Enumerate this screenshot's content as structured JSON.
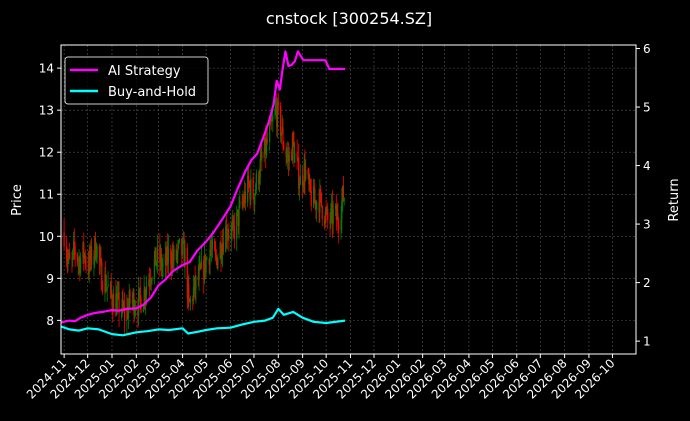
{
  "chart_data": {
    "type": "line",
    "title": "cnstock [300254.SZ]",
    "ylabel_left": "Price",
    "ylabel_right": "Return",
    "xlabel": "",
    "grid": true,
    "legend_position": "top-left",
    "x_axis": {
      "type": "date",
      "range": [
        "2024-10-28",
        "2026-10-31"
      ],
      "tick_labels": [
        "2024-11",
        "2024-12",
        "2025-01",
        "2025-02",
        "2025-03",
        "2025-04",
        "2025-05",
        "2025-06",
        "2025-07",
        "2025-08",
        "2025-09",
        "2025-10",
        "2025-11",
        "2025-12",
        "2026-01",
        "2026-02",
        "2026-03",
        "2026-04",
        "2026-05",
        "2026-06",
        "2026-07",
        "2026-08",
        "2026-09",
        "2026-10"
      ]
    },
    "y_left": {
      "range": [
        7.2,
        14.55
      ],
      "ticks": [
        8,
        9,
        10,
        11,
        12,
        13,
        14
      ]
    },
    "y_right": {
      "range": [
        0.78,
        6.06
      ],
      "ticks": [
        1,
        2,
        3,
        4,
        5,
        6
      ]
    },
    "candles": {
      "up_color": "#008000",
      "down_color": "#ff0000",
      "close_path": [
        [
          "2024-11-01",
          10.1
        ],
        [
          "2024-11-05",
          9.5
        ],
        [
          "2024-11-10",
          9.2
        ],
        [
          "2024-11-14",
          9.7
        ],
        [
          "2024-11-20",
          9.4
        ],
        [
          "2024-11-26",
          9.6
        ],
        [
          "2024-12-02",
          9.3
        ],
        [
          "2024-12-06",
          9.5
        ],
        [
          "2024-12-12",
          9.8
        ],
        [
          "2024-12-18",
          9.1
        ],
        [
          "2024-12-24",
          8.9
        ],
        [
          "2024-12-30",
          8.6
        ],
        [
          "2025-01-06",
          8.4
        ],
        [
          "2025-01-12",
          8.3
        ],
        [
          "2025-01-18",
          8.1
        ],
        [
          "2025-01-25",
          8.5
        ],
        [
          "2025-02-03",
          8.4
        ],
        [
          "2025-02-10",
          8.6
        ],
        [
          "2025-02-16",
          9.0
        ],
        [
          "2025-02-22",
          9.3
        ],
        [
          "2025-03-01",
          9.5
        ],
        [
          "2025-03-08",
          9.2
        ],
        [
          "2025-03-15",
          9.6
        ],
        [
          "2025-03-22",
          9.4
        ],
        [
          "2025-03-29",
          9.7
        ],
        [
          "2025-04-04",
          9.5
        ],
        [
          "2025-04-09",
          8.3
        ],
        [
          "2025-04-15",
          8.7
        ],
        [
          "2025-04-22",
          9.0
        ],
        [
          "2025-04-29",
          9.3
        ],
        [
          "2025-05-06",
          9.7
        ],
        [
          "2025-05-13",
          9.4
        ],
        [
          "2025-05-20",
          9.8
        ],
        [
          "2025-05-27",
          10.2
        ],
        [
          "2025-06-03",
          10.0
        ],
        [
          "2025-06-10",
          10.4
        ],
        [
          "2025-06-17",
          10.8
        ],
        [
          "2025-06-24",
          11.2
        ],
        [
          "2025-07-01",
          11.0
        ],
        [
          "2025-07-08",
          11.6
        ],
        [
          "2025-07-15",
          12.0
        ],
        [
          "2025-07-22",
          12.5
        ],
        [
          "2025-07-29",
          13.0
        ],
        [
          "2025-08-04",
          12.6
        ],
        [
          "2025-08-09",
          12.1
        ],
        [
          "2025-08-14",
          11.8
        ],
        [
          "2025-08-19",
          12.2
        ],
        [
          "2025-08-24",
          11.7
        ],
        [
          "2025-08-29",
          11.3
        ],
        [
          "2025-09-04",
          11.6
        ],
        [
          "2025-09-10",
          11.0
        ],
        [
          "2025-09-16",
          10.8
        ],
        [
          "2025-09-22",
          10.9
        ],
        [
          "2025-09-28",
          10.6
        ],
        [
          "2025-10-04",
          10.3
        ],
        [
          "2025-10-10",
          10.5
        ],
        [
          "2025-10-16",
          10.4
        ],
        [
          "2025-10-22",
          10.9
        ],
        [
          "2025-10-25",
          11.0
        ]
      ]
    },
    "series": [
      {
        "name": "AI Strategy",
        "axis": "right",
        "color": "#ff00ff",
        "points": [
          [
            "2024-10-28",
            1.32
          ],
          [
            "2024-11-08",
            1.35
          ],
          [
            "2024-11-15",
            1.34
          ],
          [
            "2024-11-22",
            1.4
          ],
          [
            "2024-12-01",
            1.45
          ],
          [
            "2024-12-10",
            1.48
          ],
          [
            "2024-12-20",
            1.5
          ],
          [
            "2025-01-01",
            1.53
          ],
          [
            "2025-01-10",
            1.52
          ],
          [
            "2025-01-20",
            1.55
          ],
          [
            "2025-02-01",
            1.56
          ],
          [
            "2025-02-10",
            1.62
          ],
          [
            "2025-02-20",
            1.75
          ],
          [
            "2025-03-01",
            1.95
          ],
          [
            "2025-03-10",
            2.05
          ],
          [
            "2025-03-20",
            2.2
          ],
          [
            "2025-04-01",
            2.3
          ],
          [
            "2025-04-10",
            2.35
          ],
          [
            "2025-04-20",
            2.55
          ],
          [
            "2025-05-01",
            2.7
          ],
          [
            "2025-05-10",
            2.85
          ],
          [
            "2025-05-20",
            3.05
          ],
          [
            "2025-06-01",
            3.3
          ],
          [
            "2025-06-10",
            3.6
          ],
          [
            "2025-06-20",
            3.9
          ],
          [
            "2025-06-28",
            4.1
          ],
          [
            "2025-07-05",
            4.2
          ],
          [
            "2025-07-12",
            4.45
          ],
          [
            "2025-07-20",
            4.75
          ],
          [
            "2025-07-26",
            5.05
          ],
          [
            "2025-07-30",
            5.45
          ],
          [
            "2025-08-03",
            5.3
          ],
          [
            "2025-08-06",
            5.6
          ],
          [
            "2025-08-10",
            5.95
          ],
          [
            "2025-08-14",
            5.7
          ],
          [
            "2025-08-18",
            5.72
          ],
          [
            "2025-08-22",
            5.78
          ],
          [
            "2025-08-26",
            5.95
          ],
          [
            "2025-09-02",
            5.8
          ],
          [
            "2025-09-15",
            5.8
          ],
          [
            "2025-09-30",
            5.8
          ],
          [
            "2025-10-05",
            5.65
          ],
          [
            "2025-10-25",
            5.65
          ]
        ]
      },
      {
        "name": "Buy-and-Hold",
        "axis": "right",
        "color": "#00ffff",
        "points": [
          [
            "2024-10-28",
            1.25
          ],
          [
            "2024-11-08",
            1.2
          ],
          [
            "2024-11-20",
            1.18
          ],
          [
            "2024-12-01",
            1.22
          ],
          [
            "2024-12-15",
            1.2
          ],
          [
            "2025-01-01",
            1.12
          ],
          [
            "2025-01-15",
            1.1
          ],
          [
            "2025-02-01",
            1.15
          ],
          [
            "2025-02-15",
            1.17
          ],
          [
            "2025-03-01",
            1.2
          ],
          [
            "2025-03-15",
            1.19
          ],
          [
            "2025-04-01",
            1.22
          ],
          [
            "2025-04-08",
            1.13
          ],
          [
            "2025-04-20",
            1.16
          ],
          [
            "2025-05-01",
            1.19
          ],
          [
            "2025-05-15",
            1.22
          ],
          [
            "2025-06-01",
            1.23
          ],
          [
            "2025-06-15",
            1.28
          ],
          [
            "2025-07-01",
            1.33
          ],
          [
            "2025-07-15",
            1.35
          ],
          [
            "2025-07-25",
            1.4
          ],
          [
            "2025-08-01",
            1.55
          ],
          [
            "2025-08-08",
            1.45
          ],
          [
            "2025-08-20",
            1.5
          ],
          [
            "2025-09-01",
            1.4
          ],
          [
            "2025-09-15",
            1.33
          ],
          [
            "2025-10-01",
            1.31
          ],
          [
            "2025-10-25",
            1.35
          ]
        ]
      }
    ]
  }
}
